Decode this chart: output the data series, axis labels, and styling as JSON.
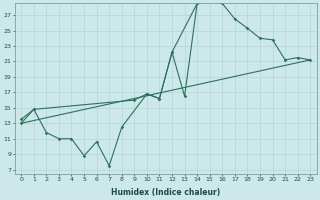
{
  "xlabel": "Humidex (Indice chaleur)",
  "bg_color": "#cce8e8",
  "grid_color": "#b8d8d8",
  "line_color": "#2d7060",
  "xlim": [
    -0.5,
    23.5
  ],
  "ylim": [
    6.5,
    28.5
  ],
  "yticks": [
    7,
    9,
    11,
    13,
    15,
    17,
    19,
    21,
    23,
    25,
    27
  ],
  "xticks": [
    0,
    1,
    2,
    3,
    4,
    5,
    6,
    7,
    8,
    9,
    10,
    11,
    12,
    13,
    14,
    15,
    16,
    17,
    18,
    19,
    20,
    21,
    22,
    23
  ],
  "line1_x": [
    0,
    1,
    2,
    3,
    4,
    5,
    6,
    7,
    8,
    9,
    10,
    11,
    12,
    13,
    14,
    15,
    16,
    17,
    18,
    19,
    20,
    21,
    22,
    23
  ],
  "line1_y": [
    13.5,
    14.8,
    11.8,
    11.0,
    11.0,
    8.8,
    10.6,
    7.5,
    12.5,
    null,
    16.8,
    16.2,
    22.2,
    null,
    28.5,
    28.8,
    28.5,
    null,
    null,
    null,
    null,
    null,
    null,
    null
  ],
  "line2_x": [
    0,
    23
  ],
  "line2_y": [
    13.0,
    21.2
  ],
  "line3_x": [
    0,
    1,
    9,
    10,
    11,
    12,
    13,
    14,
    15,
    16,
    17,
    18,
    19,
    20,
    21,
    22,
    23
  ],
  "line3_y": [
    13.0,
    14.8,
    16.0,
    16.8,
    16.2,
    22.2,
    16.5,
    28.5,
    28.8,
    28.5,
    26.5,
    25.3,
    24.0,
    23.8,
    21.2,
    21.5,
    21.2
  ]
}
